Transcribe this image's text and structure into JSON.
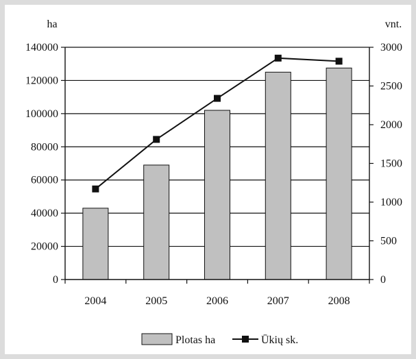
{
  "chart_data": {
    "type": "bar",
    "categories": [
      "2004",
      "2005",
      "2006",
      "2007",
      "2008"
    ],
    "series": [
      {
        "name": "Plotas ha",
        "type": "bar",
        "axis": "left",
        "color": "#c0c0c0",
        "values": [
          43000,
          69000,
          102000,
          125000,
          127500
        ]
      },
      {
        "name": "Ūkių sk.",
        "type": "line",
        "axis": "right",
        "color": "#111111",
        "values": [
          1170,
          1810,
          2340,
          2860,
          2820
        ]
      }
    ],
    "y_left": {
      "unit": "ha",
      "ylim": [
        0,
        140000
      ],
      "ticks": [
        "0",
        "20000",
        "40000",
        "60000",
        "80000",
        "100000",
        "120000",
        "140000"
      ]
    },
    "y_right": {
      "unit": "vnt.",
      "ylim": [
        0,
        3000
      ],
      "ticks": [
        "0",
        "500",
        "1000",
        "1500",
        "2000",
        "2500",
        "3000"
      ]
    },
    "grid": true,
    "legend_position": "bottom"
  }
}
